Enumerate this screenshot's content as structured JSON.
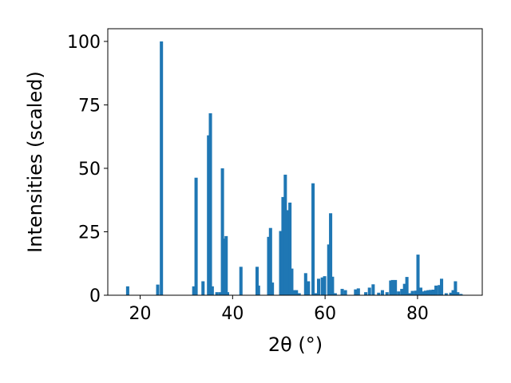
{
  "chart_data": {
    "type": "bar",
    "xlabel": "2θ (°)",
    "ylabel": "Intensities (scaled)",
    "xlim": [
      13,
      94
    ],
    "ylim": [
      0,
      105
    ],
    "xticks": [
      20,
      40,
      60,
      80
    ],
    "yticks": [
      0,
      25,
      50,
      75,
      100
    ],
    "grid": false,
    "bar_color": "#1f77b4",
    "bar_width": 0.7,
    "x": [
      17.3,
      23.8,
      24.6,
      31.6,
      32.1,
      33.6,
      34.8,
      35.2,
      35.6,
      36.6,
      37.3,
      37.8,
      38.3,
      38.6,
      38.9,
      41.8,
      45.3,
      45.6,
      47.8,
      48.2,
      48.6,
      50.4,
      50.9,
      51.4,
      51.8,
      52.4,
      52.8,
      53.3,
      53.8,
      54.4,
      55.8,
      56.4,
      57.4,
      57.9,
      58.6,
      59.4,
      59.9,
      60.8,
      61.2,
      61.6,
      62.2,
      63.7,
      64.4,
      66.6,
      67.2,
      68.8,
      69.6,
      70.4,
      71.6,
      72.4,
      73.4,
      74.2,
      74.6,
      75.2,
      75.9,
      76.6,
      77.2,
      77.7,
      78.3,
      78.9,
      79.6,
      80.1,
      80.7,
      81.2,
      81.7,
      82.3,
      82.8,
      83.4,
      84.0,
      84.7,
      85.2,
      86.2,
      87.2,
      87.7,
      88.2,
      88.7,
      89.4
    ],
    "values": [
      3.5,
      4.2,
      100,
      3.5,
      46.3,
      5.5,
      63,
      71.7,
      3.5,
      1.2,
      1.2,
      50,
      22.3,
      23.3,
      1.2,
      11.2,
      11.2,
      3.8,
      23,
      26.5,
      5,
      25.3,
      38.7,
      47.5,
      33.5,
      36.5,
      10.5,
      2,
      2,
      0.8,
      8.7,
      5.5,
      44.1,
      0.8,
      6.5,
      7,
      7.5,
      20,
      32.3,
      7.3,
      0.8,
      2.5,
      2,
      2.3,
      2.7,
      1.2,
      3,
      4.3,
      1,
      2,
      1.2,
      5.8,
      6,
      6,
      1.5,
      2.5,
      4.5,
      7.2,
      0.8,
      1.7,
      1.8,
      16,
      3,
      1.5,
      1.8,
      2,
      2.1,
      2.2,
      3.8,
      4,
      6.5,
      0.8,
      1,
      2,
      5.5,
      1.2,
      0.5
    ]
  }
}
